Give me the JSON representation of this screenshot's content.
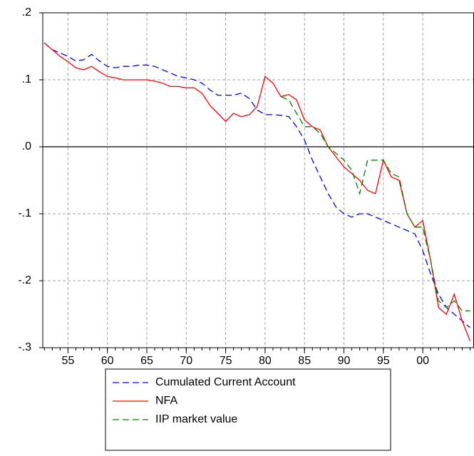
{
  "chart_data": {
    "type": "line",
    "x": [
      1952,
      1953,
      1954,
      1955,
      1956,
      1957,
      1958,
      1959,
      1960,
      1961,
      1962,
      1963,
      1964,
      1965,
      1966,
      1967,
      1968,
      1969,
      1970,
      1971,
      1972,
      1973,
      1974,
      1975,
      1976,
      1977,
      1978,
      1979,
      1980,
      1981,
      1982,
      1983,
      1984,
      1985,
      1986,
      1987,
      1988,
      1989,
      1990,
      1991,
      1992,
      1993,
      1994,
      1995,
      1996,
      1997,
      1998,
      1999,
      2000,
      2001,
      2002,
      2003,
      2004,
      2005,
      2006
    ],
    "series": [
      {
        "name": "Cumulated Current Account",
        "color": "#0000ff",
        "dash": true,
        "values": [
          0.155,
          0.145,
          0.14,
          0.135,
          0.128,
          0.13,
          0.138,
          0.128,
          0.12,
          0.118,
          0.12,
          0.12,
          0.122,
          0.122,
          0.12,
          0.115,
          0.11,
          0.105,
          0.103,
          0.1,
          0.095,
          0.085,
          0.077,
          0.077,
          0.077,
          0.08,
          0.072,
          0.055,
          0.048,
          0.048,
          0.047,
          0.045,
          0.03,
          0.01,
          -0.02,
          -0.045,
          -0.07,
          -0.09,
          -0.1,
          -0.105,
          -0.1,
          -0.1,
          -0.105,
          -0.11,
          -0.115,
          -0.12,
          -0.125,
          -0.13,
          -0.155,
          -0.19,
          -0.22,
          -0.24,
          -0.25,
          -0.26,
          -0.27
        ]
      },
      {
        "name": "NFA",
        "color": "#ff0000",
        "dash": false,
        "values": [
          0.155,
          0.145,
          0.135,
          0.127,
          0.118,
          0.115,
          0.12,
          0.112,
          0.105,
          0.103,
          0.1,
          0.1,
          0.1,
          0.1,
          0.098,
          0.095,
          0.09,
          0.09,
          0.088,
          0.088,
          0.08,
          0.062,
          0.05,
          0.038,
          0.05,
          0.045,
          0.048,
          0.06,
          0.105,
          0.095,
          0.075,
          0.078,
          0.07,
          0.04,
          0.03,
          0.025,
          0.0,
          -0.015,
          -0.03,
          -0.04,
          -0.05,
          -0.065,
          -0.07,
          -0.02,
          -0.045,
          -0.05,
          -0.1,
          -0.12,
          -0.11,
          -0.17,
          -0.24,
          -0.25,
          -0.22,
          -0.26,
          -0.29
        ]
      },
      {
        "name": "IIP market value",
        "color": "#008000",
        "dash": true,
        "values": [
          null,
          null,
          null,
          null,
          null,
          null,
          null,
          null,
          null,
          null,
          null,
          null,
          null,
          null,
          null,
          null,
          null,
          null,
          null,
          null,
          null,
          null,
          null,
          null,
          null,
          null,
          null,
          null,
          null,
          null,
          0.075,
          0.07,
          0.05,
          0.03,
          0.03,
          0.02,
          0.0,
          -0.01,
          -0.02,
          -0.035,
          -0.07,
          -0.02,
          -0.02,
          -0.02,
          -0.04,
          -0.045,
          -0.1,
          -0.12,
          -0.12,
          -0.17,
          -0.23,
          -0.24,
          -0.23,
          -0.245,
          -0.245
        ]
      }
    ],
    "xlim": [
      1951.8,
      2006.5
    ],
    "xticks": [
      {
        "value": 1955,
        "label": "55"
      },
      {
        "value": 1960,
        "label": "60"
      },
      {
        "value": 1965,
        "label": "65"
      },
      {
        "value": 1970,
        "label": "70"
      },
      {
        "value": 1975,
        "label": "75"
      },
      {
        "value": 1980,
        "label": "80"
      },
      {
        "value": 1985,
        "label": "85"
      },
      {
        "value": 1990,
        "label": "90"
      },
      {
        "value": 1995,
        "label": "95"
      },
      {
        "value": 2000,
        "label": "00"
      }
    ],
    "ylim": [
      -0.3,
      0.2
    ],
    "yticks": [
      {
        "value": -0.3,
        "label": "-.3"
      },
      {
        "value": -0.2,
        "label": "-.2"
      },
      {
        "value": -0.1,
        "label": "-.1"
      },
      {
        "value": 0,
        "label": ".0"
      },
      {
        "value": 0.1,
        "label": ".1"
      },
      {
        "value": 0.2,
        "label": ".2"
      }
    ],
    "grid": true,
    "legend": "bottom"
  }
}
